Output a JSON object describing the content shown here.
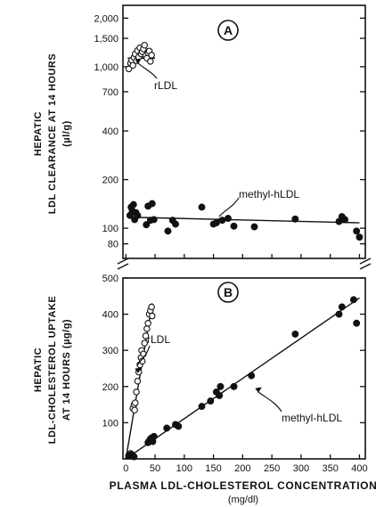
{
  "chart_data": [
    {
      "panel": "A",
      "type": "scatter",
      "scale": "log",
      "ylabel_lines": [
        "HEPATIC",
        "LDL  CLEARANCE AT 14 HOURS",
        "(µl/g)"
      ],
      "yticks": [
        80,
        100,
        200,
        400,
        700,
        1000,
        1500,
        2000
      ],
      "ytick_labels": [
        "80",
        "100",
        "200",
        "400",
        "700",
        "1,000",
        "1,500",
        "2,000"
      ],
      "ylim": [
        65,
        2400
      ],
      "xlim": [
        -5,
        410
      ],
      "series": [
        {
          "name": "rLDL",
          "marker": "open-circle",
          "points": [
            [
              5,
              970
            ],
            [
              8,
              1050
            ],
            [
              10,
              1100
            ],
            [
              12,
              1020
            ],
            [
              14,
              1140
            ],
            [
              16,
              1200
            ],
            [
              18,
              1090
            ],
            [
              20,
              1260
            ],
            [
              22,
              1150
            ],
            [
              24,
              1310
            ],
            [
              26,
              1200
            ],
            [
              28,
              1240
            ],
            [
              30,
              1290
            ],
            [
              32,
              1360
            ],
            [
              34,
              1170
            ],
            [
              36,
              1130
            ],
            [
              38,
              1220
            ],
            [
              40,
              1250
            ],
            [
              42,
              1080
            ],
            [
              44,
              1180
            ]
          ],
          "fit": [
            [
              3,
              1130
            ],
            [
              50,
              1130
            ]
          ]
        },
        {
          "name": "methyl-hLDL",
          "marker": "filled-circle",
          "points": [
            [
              7,
              120
            ],
            [
              9,
              135
            ],
            [
              11,
              128
            ],
            [
              13,
              140
            ],
            [
              15,
              113
            ],
            [
              17,
              125
            ],
            [
              20,
              120
            ],
            [
              35,
              105
            ],
            [
              38,
              137
            ],
            [
              42,
              112
            ],
            [
              45,
              142
            ],
            [
              48,
              113
            ],
            [
              72,
              96
            ],
            [
              80,
              112
            ],
            [
              85,
              106
            ],
            [
              130,
              135
            ],
            [
              150,
              106
            ],
            [
              155,
              108
            ],
            [
              165,
              112
            ],
            [
              175,
              115
            ],
            [
              185,
              103
            ],
            [
              220,
              102
            ],
            [
              290,
              114
            ],
            [
              365,
              110
            ],
            [
              370,
              118
            ],
            [
              375,
              113
            ],
            [
              395,
              96
            ],
            [
              400,
              88
            ]
          ],
          "fit": [
            [
              5,
              117
            ],
            [
              400,
              108
            ]
          ]
        }
      ],
      "annotations": [
        "rLDL",
        "methyl-hLDL"
      ]
    },
    {
      "panel": "B",
      "type": "scatter",
      "ylabel_lines": [
        "HEPATIC",
        "LDL-CHOLESTEROL UPTAKE",
        "AT 14 HOURS (µg/g)"
      ],
      "yticks": [
        100,
        200,
        300,
        400,
        500
      ],
      "ytick_labels": [
        "100",
        "200",
        "300",
        "400",
        "500"
      ],
      "ylim": [
        0,
        500
      ],
      "xticks": [
        0,
        50,
        100,
        150,
        200,
        250,
        300,
        350,
        400
      ],
      "xtick_labels": [
        "0",
        "50",
        "100",
        "150",
        "200",
        "250",
        "300",
        "350",
        "400"
      ],
      "xlim": [
        -5,
        410
      ],
      "series": [
        {
          "name": "rLDL",
          "marker": "open-circle",
          "points": [
            [
              5,
              10
            ],
            [
              8,
              15
            ],
            [
              10,
              12
            ],
            [
              12,
              140
            ],
            [
              14,
              150
            ],
            [
              15,
              135
            ],
            [
              16,
              155
            ],
            [
              18,
              185
            ],
            [
              20,
              215
            ],
            [
              22,
              240
            ],
            [
              24,
              260
            ],
            [
              26,
              280
            ],
            [
              27,
              300
            ],
            [
              28,
              270
            ],
            [
              30,
              290
            ],
            [
              32,
              320
            ],
            [
              34,
              340
            ],
            [
              36,
              360
            ],
            [
              38,
              375
            ],
            [
              40,
              400
            ],
            [
              42,
              410
            ],
            [
              44,
              420
            ],
            [
              45,
              395
            ]
          ],
          "fit": [
            [
              0,
              0
            ],
            [
              45,
              430
            ]
          ]
        },
        {
          "name": "methyl-hLDL",
          "marker": "filled-circle",
          "points": [
            [
              5,
              8
            ],
            [
              7,
              10
            ],
            [
              10,
              12
            ],
            [
              12,
              8
            ],
            [
              14,
              6
            ],
            [
              38,
              45
            ],
            [
              40,
              50
            ],
            [
              42,
              55
            ],
            [
              44,
              58
            ],
            [
              46,
              48
            ],
            [
              48,
              62
            ],
            [
              70,
              85
            ],
            [
              85,
              95
            ],
            [
              90,
              90
            ],
            [
              130,
              145
            ],
            [
              145,
              160
            ],
            [
              155,
              185
            ],
            [
              160,
              175
            ],
            [
              162,
              200
            ],
            [
              185,
              200
            ],
            [
              215,
              230
            ],
            [
              290,
              345
            ],
            [
              365,
              400
            ],
            [
              370,
              420
            ],
            [
              390,
              440
            ],
            [
              395,
              375
            ]
          ],
          "fit": [
            [
              0,
              0
            ],
            [
              400,
              445
            ]
          ]
        }
      ],
      "annotations": [
        "rLDL",
        "methyl-hLDL"
      ]
    }
  ],
  "xlabel": "PLASMA LDL-CHOLESTEROL CONCENTRATION",
  "xunit": "(mg/dl)"
}
